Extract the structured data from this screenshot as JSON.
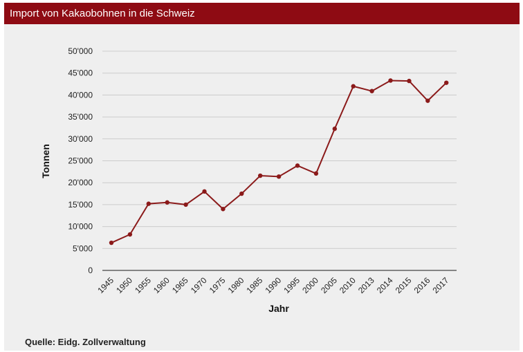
{
  "header": {
    "title": "Import von Kakaobohnen in die Schweiz"
  },
  "footer": {
    "source": "Quelle: Eidg. Zollverwaltung"
  },
  "chart_data": {
    "type": "line",
    "title": "Import von Kakaobohnen in die Schweiz",
    "xlabel": "Jahr",
    "ylabel": "Tonnen",
    "ylim": [
      0,
      50000
    ],
    "yticks": [
      "0",
      "5'000",
      "10'000",
      "15'000",
      "20'000",
      "25'000",
      "30'000",
      "35'000",
      "40'000",
      "45'000",
      "50'000"
    ],
    "categories": [
      "1945",
      "1950",
      "1955",
      "1960",
      "1965",
      "1970",
      "1975",
      "1980",
      "1985",
      "1990",
      "1995",
      "2000",
      "2005",
      "2010",
      "2013",
      "2014",
      "2015",
      "2016",
      "2017"
    ],
    "series": [
      {
        "values": [
          6300,
          8200,
          15200,
          15500,
          15000,
          18000,
          14000,
          17500,
          21600,
          21400,
          23900,
          22100,
          32300,
          42000,
          40900,
          43300,
          43200,
          38700,
          42800
        ]
      }
    ],
    "grid": true,
    "legend": "none",
    "line_color": "#8b1a1a",
    "grid_color": "#cccccc"
  }
}
